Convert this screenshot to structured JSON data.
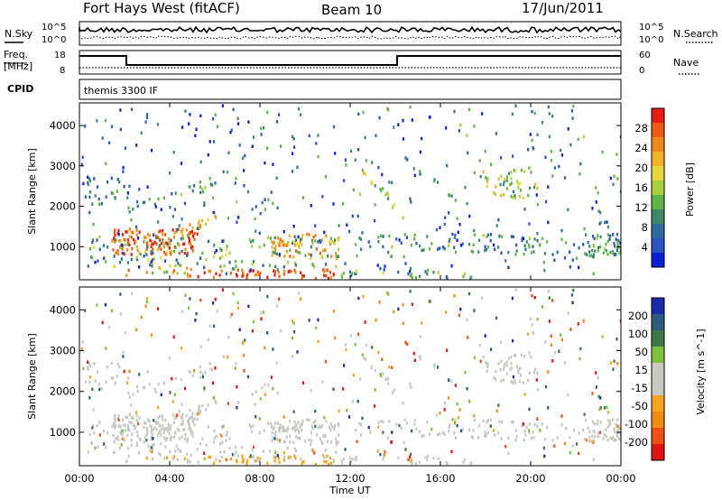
{
  "header": {
    "title": "Fort Hays West (fitACF)",
    "beam": "Beam 10",
    "date": "17/Jun/2011"
  },
  "noise_panel": {
    "left_label": "N.Sky",
    "right_label": "N.Search",
    "left_ticks": [
      "10^5",
      "10^0"
    ],
    "right_ticks": [
      "10^5",
      "10^0"
    ]
  },
  "freq_panel": {
    "left_label_1": "Freq.",
    "left_label_2": "[MHz]",
    "right_label": "Nave",
    "left_ticks": [
      "18",
      "8"
    ],
    "right_ticks": [
      "60",
      "0"
    ]
  },
  "cpid_panel": {
    "label": "CPID",
    "mode": "themis 3300 IF"
  },
  "chart_data": [
    {
      "type": "heatmap",
      "name": "power",
      "ylabel": "Slant Range [km]",
      "yticks": [
        1000,
        2000,
        3000,
        4000
      ],
      "ylim": [
        180,
        4560
      ],
      "colorbar_label": "Power [dB]",
      "colorbar_ticks": [
        4,
        8,
        12,
        16,
        20,
        24,
        28
      ],
      "colors": [
        "#0a1ed2",
        "#2a52c0",
        "#2e6a9a",
        "#3f8a66",
        "#62b44a",
        "#a8cf3e",
        "#e6d83a",
        "#f1b324",
        "#f08a1c",
        "#ed5a16",
        "#e41e12"
      ],
      "clim": [
        0,
        30
      ],
      "regions": [
        {
          "t": [
            1.0,
            5.4
          ],
          "r": [
            780,
            1500
          ],
          "level": 27
        },
        {
          "t": [
            5.0,
            11.5
          ],
          "r": [
            200,
            480
          ],
          "level": 27
        },
        {
          "t": [
            0.2,
            12.0
          ],
          "r": [
            500,
            900
          ],
          "level": 15
        },
        {
          "t": [
            12.0,
            24.0
          ],
          "r": [
            800,
            1300
          ],
          "level": 10
        },
        {
          "t": [
            12.3,
            14.0
          ],
          "r": [
            1800,
            3000
          ],
          "level": 16
        },
        {
          "t": [
            18.0,
            20.2
          ],
          "r": [
            2200,
            2900
          ],
          "level": 16
        }
      ]
    },
    {
      "type": "heatmap",
      "name": "velocity",
      "ylabel": "Slant Range [km]",
      "yticks": [
        1000,
        2000,
        3000,
        4000
      ],
      "ylim": [
        180,
        4560
      ],
      "colorbar_label": "Velocity [m s^-1]",
      "colorbar_ticks": [
        200,
        100,
        50,
        15,
        -15,
        -50,
        -100,
        -200
      ],
      "colors": [
        "#1b2aa6",
        "#2c5b7c",
        "#3a7a48",
        "#7ec23e",
        "#c8c8c4",
        "#c8c8c4",
        "#f6a41f",
        "#f28a16",
        "#ee5016",
        "#e01414"
      ],
      "clim": [
        -250,
        250
      ]
    }
  ],
  "time_axis": {
    "xlabel": "Time UT",
    "xticks": [
      "00:00",
      "04:00",
      "08:00",
      "12:00",
      "16:00",
      "20:00",
      "00:00"
    ],
    "xlim_hours": [
      0,
      24
    ]
  }
}
